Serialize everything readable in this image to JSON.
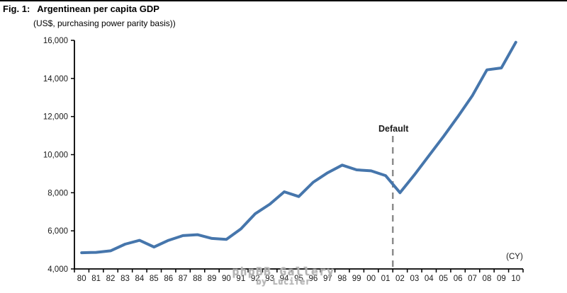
{
  "figure": {
    "title_prefix": "Fig. 1:",
    "title_text": "Argentinean per capita GDP",
    "subtitle": "(US$, purchasing power parity basis))"
  },
  "watermark": {
    "line1": "phpBB Gallery",
    "line2": "by Lucifer"
  },
  "chart_data": {
    "type": "line",
    "title": "Argentinean per capita GDP",
    "subtitle": "(US$, purchasing power parity basis))",
    "categories": [
      "80",
      "81",
      "82",
      "83",
      "84",
      "85",
      "86",
      "87",
      "88",
      "89",
      "90",
      "91",
      "92",
      "93",
      "94",
      "95",
      "96",
      "97",
      "98",
      "99",
      "00",
      "01",
      "02",
      "03",
      "04",
      "05",
      "06",
      "07",
      "08",
      "09",
      "10"
    ],
    "series": [
      {
        "name": "Argentinean per capita GDP (US$, PPP)",
        "color": "#4676ac",
        "values": [
          4850,
          4870,
          4950,
          5300,
          5500,
          5150,
          5500,
          5750,
          5800,
          5600,
          5550,
          6100,
          6900,
          7400,
          8050,
          7800,
          8550,
          9050,
          9450,
          9200,
          9150,
          8900,
          8000,
          8950,
          9950,
          10950,
          12000,
          13100,
          14450,
          14550,
          15900
        ]
      }
    ],
    "ylim": [
      4000,
      16000
    ],
    "ytick_values": [
      4000,
      6000,
      8000,
      10000,
      12000,
      14000,
      16000
    ],
    "ytick_labels": [
      "4,000",
      "6,000",
      "8,000",
      "10,000",
      "12,000",
      "14,000",
      "16,000"
    ],
    "xlabel": "(CY)",
    "ylabel": "",
    "grid": false,
    "legend": "none",
    "annotation": {
      "label": "Default",
      "color": "#c00000",
      "after_category": "01",
      "line_style": "dashed",
      "line_color": "#8c8c8c"
    },
    "axis_color": "#000000"
  }
}
